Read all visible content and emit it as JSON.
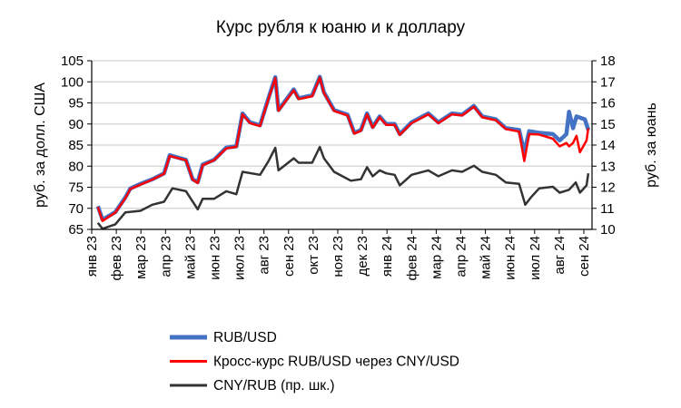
{
  "chart_data": {
    "type": "line",
    "title": "Курс рубля к юаню и к доллару",
    "ylabel_left": "руб. за долл. США",
    "ylabel_right": "руб. за юань",
    "ylim_left": [
      65,
      105
    ],
    "ylim_right": [
      10,
      18
    ],
    "yticks_left": [
      65,
      70,
      75,
      80,
      85,
      90,
      95,
      100,
      105
    ],
    "yticks_right": [
      10,
      11,
      12,
      13,
      14,
      15,
      16,
      17,
      18
    ],
    "x_unit": "months since start of Jan 2023",
    "xlim": [
      0,
      20.35
    ],
    "xtick_labels": [
      "янв 23",
      "фев 23",
      "мар 23",
      "апр 23",
      "май 23",
      "июн 23",
      "июл 23",
      "авг 23",
      "сен 23",
      "окт 23",
      "ноя 23",
      "дек 23",
      "янв 24",
      "фев 24",
      "мар 24",
      "апр 24",
      "май 24",
      "июн 24",
      "июл 24",
      "авг 24",
      "сен 24"
    ],
    "grid": true,
    "legend_position": "bottom",
    "series": [
      {
        "name": "RUB/USD",
        "axis": "left",
        "color": "#4472C4",
        "points": [
          [
            0.25,
            70.5
          ],
          [
            0.44,
            67.3
          ],
          [
            0.96,
            69.1
          ],
          [
            1.37,
            72.6
          ],
          [
            1.57,
            74.7
          ],
          [
            1.98,
            75.8
          ],
          [
            2.46,
            76.9
          ],
          [
            2.94,
            78.3
          ],
          [
            3.17,
            82.6
          ],
          [
            3.83,
            81.5
          ],
          [
            4.1,
            76.9
          ],
          [
            4.31,
            76.2
          ],
          [
            4.51,
            80.4
          ],
          [
            4.97,
            81.5
          ],
          [
            5.47,
            84.4
          ],
          [
            5.88,
            84.7
          ],
          [
            6.13,
            92.5
          ],
          [
            6.43,
            90.4
          ],
          [
            6.84,
            89.7
          ],
          [
            7.18,
            96.1
          ],
          [
            7.46,
            101.1
          ],
          [
            7.59,
            93.3
          ],
          [
            8.21,
            98.2
          ],
          [
            8.41,
            96.1
          ],
          [
            8.96,
            96.8
          ],
          [
            9.27,
            101.2
          ],
          [
            9.44,
            97.5
          ],
          [
            9.85,
            93.3
          ],
          [
            10.4,
            92.2
          ],
          [
            10.67,
            87.9
          ],
          [
            10.94,
            88.6
          ],
          [
            11.19,
            92.5
          ],
          [
            11.42,
            89.3
          ],
          [
            11.7,
            91.8
          ],
          [
            11.97,
            90.0
          ],
          [
            12.31,
            90.0
          ],
          [
            12.52,
            87.6
          ],
          [
            13.0,
            90.4
          ],
          [
            13.68,
            92.5
          ],
          [
            14.09,
            90.4
          ],
          [
            14.64,
            92.5
          ],
          [
            15.05,
            92.2
          ],
          [
            15.53,
            94.3
          ],
          [
            15.87,
            91.8
          ],
          [
            16.42,
            91.1
          ],
          [
            16.83,
            89.0
          ],
          [
            17.37,
            88.6
          ],
          [
            17.58,
            83.3
          ],
          [
            17.78,
            88.3
          ],
          [
            18.19,
            87.9
          ],
          [
            18.74,
            87.6
          ],
          [
            19.02,
            86.1
          ],
          [
            19.29,
            87.6
          ],
          [
            19.4,
            92.9
          ],
          [
            19.56,
            89.0
          ],
          [
            19.7,
            91.8
          ],
          [
            20.04,
            91.1
          ],
          [
            20.18,
            88.6
          ]
        ]
      },
      {
        "name": "Кросс-курс RUB/USD через CNY/USD",
        "axis": "left",
        "color": "#FF0000",
        "points": [
          [
            0.25,
            70.3
          ],
          [
            0.44,
            67.0
          ],
          [
            0.96,
            69.0
          ],
          [
            1.37,
            72.4
          ],
          [
            1.57,
            74.6
          ],
          [
            1.98,
            75.6
          ],
          [
            2.46,
            76.8
          ],
          [
            2.94,
            78.2
          ],
          [
            3.17,
            82.4
          ],
          [
            3.83,
            81.4
          ],
          [
            4.1,
            76.8
          ],
          [
            4.31,
            76.0
          ],
          [
            4.51,
            80.2
          ],
          [
            4.97,
            81.4
          ],
          [
            5.47,
            84.2
          ],
          [
            5.88,
            84.6
          ],
          [
            6.13,
            92.3
          ],
          [
            6.43,
            90.2
          ],
          [
            6.84,
            89.5
          ],
          [
            7.18,
            95.9
          ],
          [
            7.46,
            100.9
          ],
          [
            7.59,
            93.1
          ],
          [
            8.21,
            98.0
          ],
          [
            8.41,
            95.9
          ],
          [
            8.96,
            96.6
          ],
          [
            9.27,
            101.0
          ],
          [
            9.44,
            97.3
          ],
          [
            9.85,
            93.1
          ],
          [
            10.4,
            92.0
          ],
          [
            10.67,
            87.7
          ],
          [
            10.94,
            88.4
          ],
          [
            11.19,
            92.3
          ],
          [
            11.42,
            89.1
          ],
          [
            11.7,
            91.6
          ],
          [
            11.97,
            89.8
          ],
          [
            12.31,
            89.8
          ],
          [
            12.52,
            87.4
          ],
          [
            13.0,
            90.2
          ],
          [
            13.68,
            92.3
          ],
          [
            14.09,
            90.2
          ],
          [
            14.64,
            92.3
          ],
          [
            15.05,
            92.0
          ],
          [
            15.53,
            94.1
          ],
          [
            15.87,
            91.6
          ],
          [
            16.42,
            90.9
          ],
          [
            16.83,
            88.8
          ],
          [
            17.37,
            88.2
          ],
          [
            17.58,
            81.2
          ],
          [
            17.78,
            87.6
          ],
          [
            18.19,
            87.5
          ],
          [
            18.74,
            86.5
          ],
          [
            19.02,
            84.7
          ],
          [
            19.29,
            85.5
          ],
          [
            19.4,
            84.7
          ],
          [
            19.56,
            85.5
          ],
          [
            19.7,
            87.2
          ],
          [
            19.84,
            83.3
          ],
          [
            20.11,
            86.1
          ],
          [
            20.18,
            89.0
          ]
        ]
      },
      {
        "name": "CNY/RUB (пр. шк.)",
        "axis": "right",
        "color": "#333333",
        "points": [
          [
            0.25,
            10.31
          ],
          [
            0.44,
            10.03
          ],
          [
            0.96,
            10.24
          ],
          [
            1.37,
            10.81
          ],
          [
            1.98,
            10.88
          ],
          [
            2.46,
            11.17
          ],
          [
            2.94,
            11.31
          ],
          [
            3.28,
            11.95
          ],
          [
            3.83,
            11.81
          ],
          [
            4.31,
            10.95
          ],
          [
            4.51,
            11.45
          ],
          [
            4.97,
            11.45
          ],
          [
            5.47,
            11.81
          ],
          [
            5.88,
            11.67
          ],
          [
            6.13,
            12.73
          ],
          [
            6.84,
            12.59
          ],
          [
            7.18,
            13.23
          ],
          [
            7.46,
            13.87
          ],
          [
            7.59,
            12.8
          ],
          [
            8.21,
            13.37
          ],
          [
            8.41,
            13.16
          ],
          [
            8.96,
            13.16
          ],
          [
            9.27,
            13.91
          ],
          [
            9.44,
            13.37
          ],
          [
            9.85,
            12.73
          ],
          [
            10.53,
            12.31
          ],
          [
            10.94,
            12.38
          ],
          [
            11.19,
            12.95
          ],
          [
            11.42,
            12.52
          ],
          [
            11.7,
            12.8
          ],
          [
            11.97,
            12.66
          ],
          [
            12.31,
            12.59
          ],
          [
            12.52,
            12.09
          ],
          [
            13.0,
            12.59
          ],
          [
            13.68,
            12.8
          ],
          [
            14.09,
            12.52
          ],
          [
            14.64,
            12.8
          ],
          [
            15.05,
            12.73
          ],
          [
            15.53,
            13.02
          ],
          [
            15.87,
            12.73
          ],
          [
            16.42,
            12.59
          ],
          [
            16.83,
            12.23
          ],
          [
            17.37,
            12.16
          ],
          [
            17.62,
            11.17
          ],
          [
            17.85,
            11.52
          ],
          [
            18.19,
            11.95
          ],
          [
            18.74,
            12.02
          ],
          [
            19.02,
            11.74
          ],
          [
            19.4,
            11.88
          ],
          [
            19.67,
            12.23
          ],
          [
            19.84,
            11.74
          ],
          [
            20.11,
            12.09
          ],
          [
            20.18,
            12.66
          ]
        ]
      }
    ]
  }
}
